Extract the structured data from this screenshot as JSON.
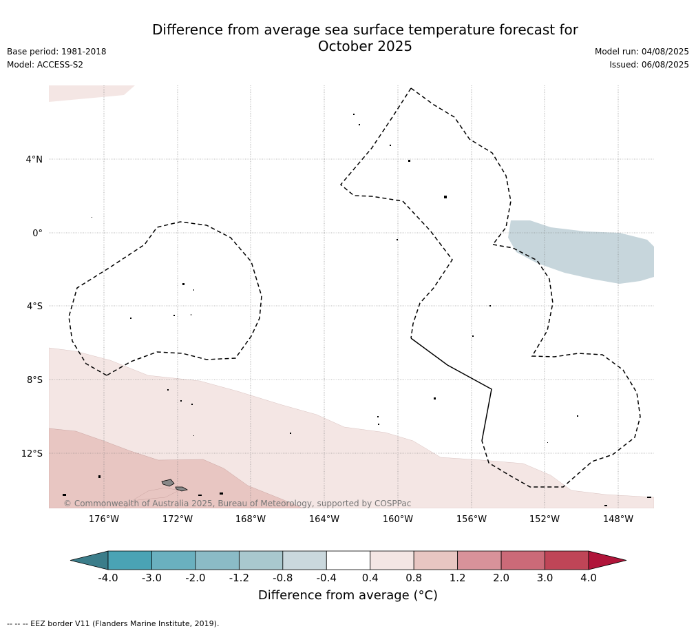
{
  "header": {
    "title_line1": "Difference from average sea surface temperature forecast for",
    "title_line2": "October 2025",
    "base_period": "Base period: 1981-2018",
    "model": "Model: ACCESS-S2",
    "model_run": "Model run: 04/08/2025",
    "issued": "Issued: 06/08/2025"
  },
  "map": {
    "copyright": "© Commonwealth of Australia 2025, Bureau of Meteorology, supported by COSPPac",
    "lon_labels": [
      "176°W",
      "172°W",
      "168°W",
      "164°W",
      "160°W",
      "156°W",
      "152°W",
      "148°W"
    ],
    "lat_labels": [
      "4°N",
      "0°",
      "4°S",
      "8°S",
      "12°S"
    ]
  },
  "footer": {
    "eez_note": "--  --  -- EEZ border V11 (Flanders Marine Institute, 2019)."
  },
  "chart_data": {
    "type": "heatmap",
    "title": "Difference from average sea surface temperature forecast for October 2025",
    "xlabel": "",
    "ylabel": "",
    "lon_ticks": [
      -176,
      -172,
      -168,
      -164,
      -160,
      -156,
      -152,
      -148
    ],
    "lat_ticks": [
      4,
      0,
      -4,
      -8,
      -12
    ],
    "colorbar": {
      "label": "Difference from average (°C)",
      "bounds": [
        -4.0,
        -3.0,
        -2.0,
        -1.2,
        -0.8,
        -0.4,
        0.4,
        0.8,
        1.2,
        2.0,
        3.0,
        4.0
      ],
      "tick_labels": [
        "-4.0",
        "-3.0",
        "-2.0",
        "-1.2",
        "-0.8",
        "-0.4",
        "0.4",
        "0.8",
        "1.2",
        "2.0",
        "3.0",
        "4.0"
      ],
      "colors": [
        "#4aa3b5",
        "#6ab0bf",
        "#8bbbc6",
        "#a9c8ce",
        "#cad8dd",
        "#ffffff",
        "#f4e6e4",
        "#e8c6c2",
        "#d8929a",
        "#cb6a78",
        "#bf4557"
      ],
      "under_color": "#3b7d8a",
      "over_color": "#b0153a"
    },
    "regions_shown": [
      {
        "range": "-0.8 to -0.4",
        "color": "#cad8dd",
        "area": "near equator around 150°W–146°W"
      },
      {
        "range": "0.4 to 0.8",
        "color": "#f4e6e4",
        "area": "southern part of map and far north-west corner"
      },
      {
        "range": "0.8 to 1.2",
        "color": "#e8c6c2",
        "area": "south-west, around 14°S 176°W–166°W"
      }
    ]
  }
}
